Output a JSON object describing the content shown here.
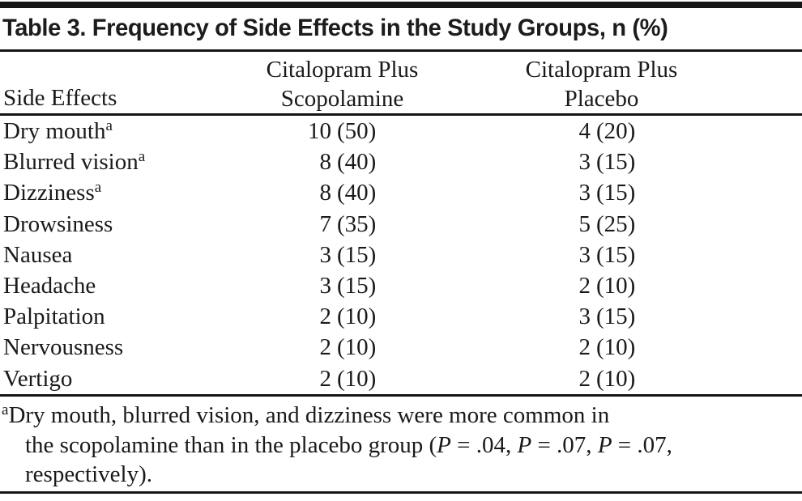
{
  "table": {
    "title": "Table 3. Frequency of Side Effects in the Study Groups, n (%)",
    "header": {
      "col1": "Side Effects",
      "col2_line1": "Citalopram Plus",
      "col2_line2": "Scopolamine",
      "col3_line1": "Citalopram Plus",
      "col3_line2": "Placebo"
    },
    "rows": [
      {
        "label": "Dry mouth",
        "sup": "a",
        "group1_n": "10",
        "group1_pct": "(50)",
        "group2_n": "4",
        "group2_pct": "(20)"
      },
      {
        "label": "Blurred vision",
        "sup": "a",
        "group1_n": "8",
        "group1_pct": "(40)",
        "group2_n": "3",
        "group2_pct": "(15)"
      },
      {
        "label": "Dizziness",
        "sup": "a",
        "group1_n": "8",
        "group1_pct": "(40)",
        "group2_n": "3",
        "group2_pct": "(15)"
      },
      {
        "label": "Drowsiness",
        "sup": "",
        "group1_n": "7",
        "group1_pct": "(35)",
        "group2_n": "5",
        "group2_pct": "(25)"
      },
      {
        "label": "Nausea",
        "sup": "",
        "group1_n": "3",
        "group1_pct": "(15)",
        "group2_n": "3",
        "group2_pct": "(15)"
      },
      {
        "label": "Headache",
        "sup": "",
        "group1_n": "3",
        "group1_pct": "(15)",
        "group2_n": "2",
        "group2_pct": "(10)"
      },
      {
        "label": "Palpitation",
        "sup": "",
        "group1_n": "2",
        "group1_pct": "(10)",
        "group2_n": "3",
        "group2_pct": "(15)"
      },
      {
        "label": "Nervousness",
        "sup": "",
        "group1_n": "2",
        "group1_pct": "(10)",
        "group2_n": "2",
        "group2_pct": "(10)"
      },
      {
        "label": "Vertigo",
        "sup": "",
        "group1_n": "2",
        "group1_pct": "(10)",
        "group2_n": "2",
        "group2_pct": "(10)"
      }
    ],
    "footnote": {
      "marker": "a",
      "line1": "Dry mouth, blurred vision, and dizziness were more common in",
      "line2_pre": "the scopolamine than in the placebo group (",
      "p": "P",
      "line2_seg1": " = .04, ",
      "line2_seg2": " = .07, ",
      "line2_seg3": " = .07,",
      "line3": "respectively)."
    },
    "colors": {
      "text": "#1a1a1a",
      "rule": "#161616",
      "background": "#ffffff"
    }
  }
}
